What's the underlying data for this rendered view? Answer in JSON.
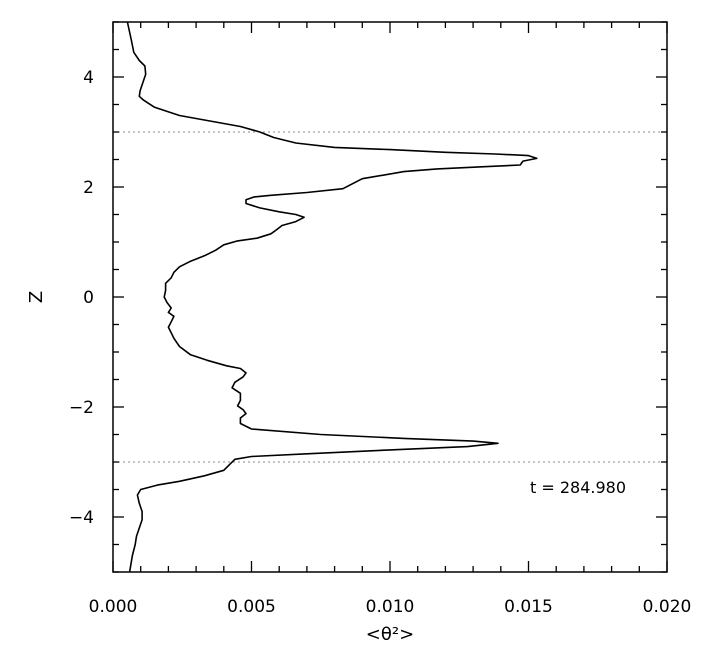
{
  "chart_data": {
    "type": "line",
    "xlabel": "<θ²>",
    "ylabel": "Z",
    "xlim": [
      0.0,
      0.02
    ],
    "ylim": [
      -5,
      5
    ],
    "x_ticks": [
      0.0,
      0.005,
      0.01,
      0.015,
      0.02
    ],
    "x_tick_labels": [
      "0.000",
      "0.005",
      "0.010",
      "0.015",
      "0.020"
    ],
    "y_ticks": [
      -4,
      -2,
      0,
      2,
      4
    ],
    "y_tick_labels": [
      "−4",
      "−2",
      "0",
      "2",
      "4"
    ],
    "annotation": "t = 284.980",
    "reference_lines": {
      "horizontal": [
        3,
        -3
      ],
      "vertical": [
        0
      ]
    },
    "grid": false,
    "series": [
      {
        "points": [
          [
            0.00052,
            5.0
          ],
          [
            0.00065,
            4.7
          ],
          [
            0.00075,
            4.45
          ],
          [
            0.00095,
            4.3
          ],
          [
            0.00115,
            4.2
          ],
          [
            0.00118,
            4.05
          ],
          [
            0.00108,
            3.9
          ],
          [
            0.00098,
            3.75
          ],
          [
            0.00095,
            3.65
          ],
          [
            0.0011,
            3.58
          ],
          [
            0.0015,
            3.45
          ],
          [
            0.0024,
            3.3
          ],
          [
            0.0035,
            3.2
          ],
          [
            0.0046,
            3.1
          ],
          [
            0.0053,
            3.0
          ],
          [
            0.0058,
            2.9
          ],
          [
            0.0066,
            2.8
          ],
          [
            0.008,
            2.72
          ],
          [
            0.01,
            2.68
          ],
          [
            0.012,
            2.63
          ],
          [
            0.0138,
            2.6
          ],
          [
            0.015,
            2.57
          ],
          [
            0.0153,
            2.52
          ],
          [
            0.0148,
            2.47
          ],
          [
            0.0147,
            2.4
          ],
          [
            0.0134,
            2.37
          ],
          [
            0.0117,
            2.33
          ],
          [
            0.0105,
            2.28
          ],
          [
            0.009,
            2.15
          ],
          [
            0.0083,
            1.97
          ],
          [
            0.007,
            1.9
          ],
          [
            0.0057,
            1.85
          ],
          [
            0.0051,
            1.82
          ],
          [
            0.0048,
            1.77
          ],
          [
            0.0048,
            1.7
          ],
          [
            0.0053,
            1.62
          ],
          [
            0.006,
            1.55
          ],
          [
            0.0066,
            1.5
          ],
          [
            0.0069,
            1.45
          ],
          [
            0.0066,
            1.37
          ],
          [
            0.0061,
            1.3
          ],
          [
            0.0059,
            1.22
          ],
          [
            0.0057,
            1.15
          ],
          [
            0.0052,
            1.07
          ],
          [
            0.0045,
            1.02
          ],
          [
            0.004,
            0.95
          ],
          [
            0.0037,
            0.85
          ],
          [
            0.0033,
            0.75
          ],
          [
            0.0028,
            0.65
          ],
          [
            0.0024,
            0.55
          ],
          [
            0.0022,
            0.45
          ],
          [
            0.0021,
            0.35
          ],
          [
            0.0019,
            0.25
          ],
          [
            0.0019,
            0.12
          ],
          [
            0.00185,
            0.0
          ],
          [
            0.00195,
            -0.1
          ],
          [
            0.0021,
            -0.2
          ],
          [
            0.002,
            -0.28
          ],
          [
            0.0022,
            -0.35
          ],
          [
            0.0021,
            -0.45
          ],
          [
            0.002,
            -0.55
          ],
          [
            0.0021,
            -0.65
          ],
          [
            0.0022,
            -0.75
          ],
          [
            0.0024,
            -0.9
          ],
          [
            0.0028,
            -1.05
          ],
          [
            0.0034,
            -1.15
          ],
          [
            0.0041,
            -1.25
          ],
          [
            0.0046,
            -1.3
          ],
          [
            0.0048,
            -1.38
          ],
          [
            0.0047,
            -1.45
          ],
          [
            0.0044,
            -1.55
          ],
          [
            0.0043,
            -1.65
          ],
          [
            0.0046,
            -1.75
          ],
          [
            0.0046,
            -1.88
          ],
          [
            0.0045,
            -1.98
          ],
          [
            0.0047,
            -2.05
          ],
          [
            0.0048,
            -2.12
          ],
          [
            0.0046,
            -2.2
          ],
          [
            0.0046,
            -2.3
          ],
          [
            0.005,
            -2.4
          ],
          [
            0.0075,
            -2.5
          ],
          [
            0.0105,
            -2.57
          ],
          [
            0.013,
            -2.62
          ],
          [
            0.0139,
            -2.66
          ],
          [
            0.0128,
            -2.72
          ],
          [
            0.01,
            -2.78
          ],
          [
            0.007,
            -2.85
          ],
          [
            0.005,
            -2.9
          ],
          [
            0.0044,
            -2.95
          ],
          [
            0.0042,
            -3.05
          ],
          [
            0.004,
            -3.15
          ],
          [
            0.0033,
            -3.25
          ],
          [
            0.0024,
            -3.35
          ],
          [
            0.0016,
            -3.42
          ],
          [
            0.001,
            -3.5
          ],
          [
            0.00088,
            -3.6
          ],
          [
            0.00095,
            -3.75
          ],
          [
            0.00105,
            -3.9
          ],
          [
            0.00105,
            -4.05
          ],
          [
            0.00095,
            -4.2
          ],
          [
            0.00085,
            -4.35
          ],
          [
            0.0008,
            -4.5
          ],
          [
            0.0007,
            -4.7
          ],
          [
            0.0006,
            -5.0
          ]
        ]
      }
    ]
  }
}
